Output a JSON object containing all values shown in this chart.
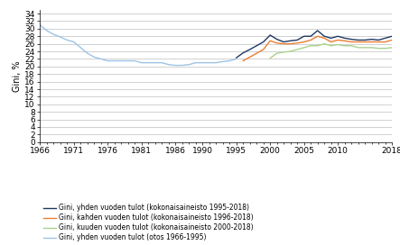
{
  "ylabel": "Gini, %",
  "ylim": [
    0,
    35
  ],
  "yticks": [
    0,
    2,
    4,
    6,
    8,
    10,
    12,
    14,
    16,
    18,
    20,
    22,
    24,
    26,
    28,
    30,
    32,
    34
  ],
  "xticks": [
    1966,
    1971,
    1976,
    1981,
    1986,
    1990,
    1995,
    2000,
    2005,
    2010,
    2018
  ],
  "xlim": [
    1966,
    2018
  ],
  "series1_label": "Gini, yhden vuoden tulot (kokonaisaineisto 1995-2018)",
  "series1_color": "#1F3864",
  "series1_x": [
    1995,
    1996,
    1997,
    1998,
    1999,
    2000,
    2001,
    2002,
    2003,
    2004,
    2005,
    2006,
    2007,
    2008,
    2009,
    2010,
    2011,
    2012,
    2013,
    2014,
    2015,
    2016,
    2017,
    2018
  ],
  "series1_y": [
    22.3,
    23.6,
    24.5,
    25.5,
    26.5,
    28.3,
    27.2,
    26.5,
    26.8,
    27.0,
    28.0,
    28.0,
    29.5,
    28.0,
    27.5,
    28.0,
    27.5,
    27.2,
    27.0,
    27.0,
    27.2,
    27.0,
    27.5,
    28.0
  ],
  "series2_label": "Gini, kahden vuoden tulot (kokonaisaineisto 1996-2018)",
  "series2_color": "#ED7D31",
  "series2_x": [
    1996,
    1997,
    1998,
    1999,
    2000,
    2001,
    2002,
    2003,
    2004,
    2005,
    2006,
    2007,
    2008,
    2009,
    2010,
    2011,
    2012,
    2013,
    2014,
    2015,
    2016,
    2017,
    2018
  ],
  "series2_y": [
    21.5,
    22.5,
    23.5,
    24.5,
    26.8,
    26.2,
    26.0,
    26.0,
    26.2,
    26.5,
    27.0,
    28.0,
    27.5,
    26.5,
    27.0,
    26.8,
    26.5,
    26.5,
    26.5,
    26.5,
    26.5,
    26.5,
    27.0
  ],
  "series3_label": "Gini, kuuden vuoden tulot (kokonaisaineisto 2000-2018)",
  "series3_color": "#A9D18E",
  "series3_x": [
    2000,
    2001,
    2002,
    2003,
    2004,
    2005,
    2006,
    2007,
    2008,
    2009,
    2010,
    2011,
    2012,
    2013,
    2014,
    2015,
    2016,
    2017,
    2018
  ],
  "series3_y": [
    22.2,
    23.5,
    23.8,
    24.0,
    24.5,
    25.0,
    25.5,
    25.5,
    26.0,
    25.5,
    25.8,
    25.5,
    25.5,
    25.0,
    25.0,
    25.0,
    24.8,
    24.8,
    25.0
  ],
  "series4_label": "Gini, yhden vuoden tulot (otos 1966-1995)",
  "series4_color": "#9DC3E6",
  "series4_x": [
    1966,
    1967,
    1968,
    1969,
    1970,
    1971,
    1972,
    1973,
    1974,
    1975,
    1976,
    1977,
    1978,
    1979,
    1980,
    1981,
    1982,
    1983,
    1984,
    1985,
    1986,
    1987,
    1988,
    1989,
    1990,
    1991,
    1992,
    1993,
    1994,
    1995
  ],
  "series4_y": [
    31.0,
    29.5,
    28.5,
    27.8,
    27.0,
    26.5,
    25.0,
    23.5,
    22.5,
    22.0,
    21.5,
    21.5,
    21.5,
    21.5,
    21.5,
    21.0,
    21.0,
    21.0,
    21.0,
    20.5,
    20.3,
    20.3,
    20.5,
    21.0,
    21.0,
    21.0,
    21.0,
    21.3,
    21.5,
    22.0
  ],
  "grid_color": "#BFBFBF",
  "spine_color": "#000000",
  "tick_labelsize": 6.5,
  "ylabel_fontsize": 7,
  "legend_fontsize": 5.5
}
